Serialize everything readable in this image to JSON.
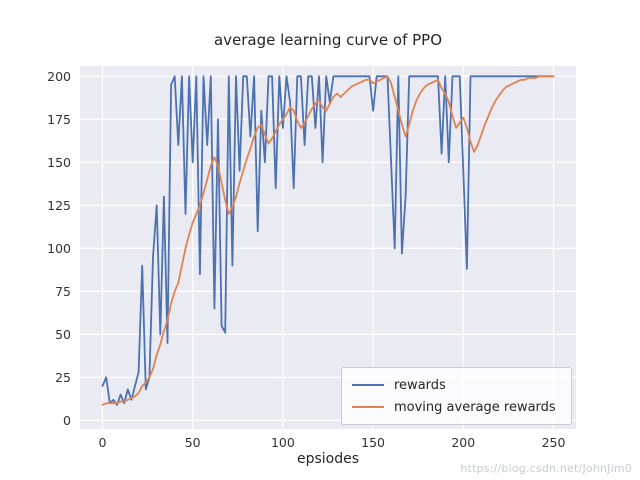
{
  "watermark": "https://blog.csdn.net/JohnJim0",
  "chart_data": {
    "type": "line",
    "title": "average learning curve of PPO",
    "xlabel": "epsiodes",
    "ylabel": "",
    "legend_position": "lower right",
    "grid": true,
    "plot_bg": "#eaeaf2",
    "grid_color": "#ffffff",
    "xticks": [
      0,
      50,
      100,
      150,
      200,
      250
    ],
    "yticks": [
      0,
      25,
      50,
      75,
      100,
      125,
      150,
      175,
      200
    ],
    "xlim": [
      -12.5,
      262.5
    ],
    "ylim": [
      -5,
      206
    ],
    "x": [
      0,
      2,
      4,
      6,
      8,
      10,
      12,
      14,
      16,
      18,
      20,
      22,
      24,
      26,
      28,
      30,
      32,
      34,
      36,
      38,
      40,
      42,
      44,
      46,
      48,
      50,
      52,
      54,
      56,
      58,
      60,
      62,
      64,
      66,
      68,
      70,
      72,
      74,
      76,
      78,
      80,
      82,
      84,
      86,
      88,
      90,
      92,
      94,
      96,
      98,
      100,
      102,
      104,
      106,
      108,
      110,
      112,
      114,
      116,
      118,
      120,
      122,
      124,
      126,
      128,
      130,
      132,
      134,
      136,
      138,
      140,
      142,
      144,
      146,
      148,
      150,
      152,
      154,
      156,
      158,
      160,
      162,
      164,
      166,
      168,
      170,
      172,
      174,
      176,
      178,
      180,
      182,
      184,
      186,
      188,
      190,
      192,
      194,
      196,
      198,
      200,
      202,
      204,
      206,
      208,
      210,
      212,
      214,
      216,
      218,
      220,
      222,
      224,
      226,
      228,
      230,
      232,
      234,
      236,
      238,
      240,
      242,
      244,
      246,
      248,
      250
    ],
    "series": [
      {
        "name": "rewards",
        "color": "#4c72b0",
        "values": [
          20,
          25,
          10,
          12,
          9,
          15,
          10,
          18,
          12,
          20,
          28,
          90,
          18,
          25,
          95,
          125,
          50,
          130,
          45,
          195,
          200,
          160,
          200,
          120,
          200,
          150,
          200,
          85,
          200,
          160,
          200,
          65,
          175,
          55,
          51,
          200,
          90,
          200,
          145,
          200,
          200,
          165,
          200,
          110,
          180,
          150,
          200,
          200,
          135,
          200,
          170,
          200,
          185,
          135,
          200,
          200,
          160,
          200,
          200,
          170,
          200,
          150,
          200,
          185,
          200,
          200,
          200,
          200,
          200,
          200,
          200,
          200,
          200,
          200,
          200,
          180,
          200,
          200,
          200,
          200,
          150,
          100,
          200,
          97,
          130,
          200,
          200,
          200,
          200,
          200,
          200,
          200,
          200,
          200,
          155,
          200,
          150,
          200,
          200,
          200,
          145,
          88,
          200,
          200,
          200,
          200,
          200,
          200,
          200,
          200,
          200,
          200,
          200,
          200,
          200,
          200,
          200,
          200,
          200,
          200,
          200,
          200,
          200,
          200,
          200,
          200
        ]
      },
      {
        "name": "moving average rewards",
        "color": "#dd8452",
        "values": [
          9,
          10,
          10,
          10,
          10,
          11,
          11,
          12,
          13,
          14,
          16,
          20,
          22,
          25,
          30,
          38,
          44,
          52,
          58,
          68,
          75,
          80,
          90,
          100,
          108,
          115,
          120,
          125,
          132,
          140,
          148,
          153,
          148,
          138,
          128,
          120,
          124,
          130,
          138,
          145,
          152,
          158,
          165,
          170,
          172,
          166,
          161,
          164,
          168,
          172,
          175,
          178,
          182,
          180,
          174,
          170,
          173,
          177,
          181,
          184,
          186,
          182,
          180,
          184,
          188,
          190,
          188,
          190,
          192,
          194,
          195,
          196,
          197,
          198,
          198,
          196,
          197,
          198,
          199,
          200,
          196,
          188,
          180,
          172,
          165,
          172,
          180,
          186,
          190,
          193,
          195,
          196,
          197,
          198,
          193,
          190,
          185,
          177,
          170,
          173,
          176,
          170,
          162,
          156,
          160,
          166,
          172,
          177,
          182,
          186,
          189,
          192,
          194,
          195,
          196,
          197,
          198,
          198,
          199,
          199,
          199,
          200,
          200,
          200,
          200,
          200
        ]
      }
    ]
  }
}
